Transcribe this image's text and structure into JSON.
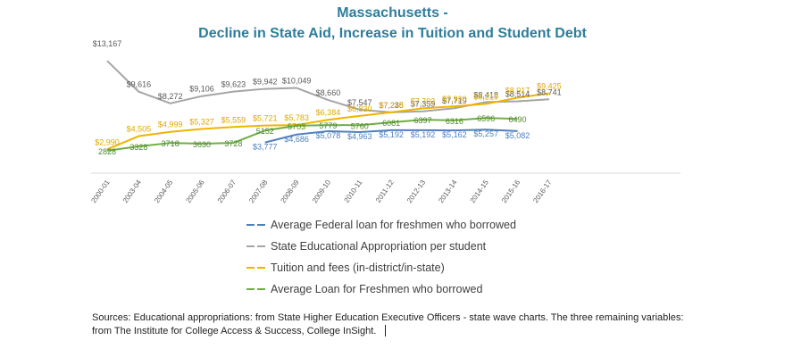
{
  "title_line1": "Massachusetts -",
  "title_line2": "Decline in State Aid, Increase in Tuition and Student Debt",
  "sources_text": "Sources: Educational appropriations: from State Higher Education Executive Officers - state wave charts. The three remaining variables: from The Institute for College Access & Success, College InSight.",
  "chart_data": {
    "type": "line",
    "title": "Massachusetts - Decline in State Aid, Increase in Tuition and Student Debt",
    "categories": [
      "2000-01",
      "2003-04",
      "2004-05",
      "2005-06",
      "2006-07",
      "2007-08",
      "2008-09",
      "2009-10",
      "2010-11",
      "2011-12",
      "2012-13",
      "2013-14",
      "2014-15",
      "2015-16",
      "2016-17"
    ],
    "grid": false,
    "legend_position": "bottom",
    "series": [
      {
        "name": "Average Federal loan for freshmen who borrowed",
        "color": "#4f81bd",
        "values": [
          null,
          null,
          null,
          null,
          null,
          3777,
          4686,
          5078,
          4963,
          5192,
          5192,
          5162,
          5257,
          5082,
          null
        ],
        "labels": [
          "",
          "",
          "",
          "",
          "",
          "$3,777",
          "$4,686",
          "$5,078",
          "$4,963",
          "$5,192",
          "$5,192",
          "$5,162",
          "$5,257",
          "$5,082",
          ""
        ],
        "label_offsets": [
          0,
          0,
          0,
          0,
          0,
          0,
          0,
          0,
          0,
          0,
          0,
          0,
          0,
          0,
          0
        ]
      },
      {
        "name": "State Educational Appropriation per student",
        "color": "#a5a5a5",
        "values": [
          13167,
          9616,
          8272,
          9106,
          9623,
          9942,
          10049,
          8660,
          7547,
          7235,
          7359,
          7719,
          8418,
          8514,
          8741
        ],
        "labels": [
          "$13,167",
          "$9,616",
          "$8,272",
          "$9,106",
          "$9,623",
          "$9,942",
          "$10,049",
          "$8,660",
          "$7,547",
          "$7,235",
          "$7,359",
          "$7,719",
          "$8,418",
          "$8,514",
          "$8,741"
        ],
        "label_offsets": [
          0,
          0,
          0,
          0,
          0,
          0,
          0,
          0,
          0,
          0,
          0,
          0,
          0,
          0,
          0
        ]
      },
      {
        "name": "Tuition and fees (in-district/in-state)",
        "color": "#f0b400",
        "values": [
          2990,
          4505,
          4999,
          5327,
          5559,
          5721,
          5783,
          6384,
          6830,
          7248,
          7702,
          7930,
          8219,
          8917,
          9425
        ],
        "labels": [
          "$2,990",
          "$4,505",
          "$4,999",
          "$5,327",
          "$5,559",
          "$5,721",
          "$5,783",
          "$6,384",
          "$6,830",
          "$7,248",
          "$7,702",
          "$7,930",
          "$8,219",
          "$8,917",
          "$9,425"
        ],
        "label_offsets": [
          0,
          0,
          0,
          0,
          0,
          0,
          0,
          0,
          0,
          0,
          0,
          0,
          0,
          0,
          0
        ]
      },
      {
        "name": "Average Loan for Freshmen who borrowed",
        "color": "#70ad47",
        "values": [
          2828,
          3328,
          3718,
          3630,
          3728,
          5152,
          5703,
          5779,
          5760,
          6081,
          6397,
          6316,
          6596,
          6490,
          null
        ],
        "labels": [
          "2828",
          "3328",
          "3718",
          "3630",
          "3728",
          "5152",
          "5703",
          "5779",
          "5760",
          "6081",
          "6397",
          "6316",
          "6596",
          "6490",
          ""
        ],
        "label_offsets": [
          0,
          0,
          0,
          0,
          0,
          0,
          0,
          0,
          0,
          0,
          0,
          0,
          0,
          0,
          0
        ]
      }
    ]
  }
}
